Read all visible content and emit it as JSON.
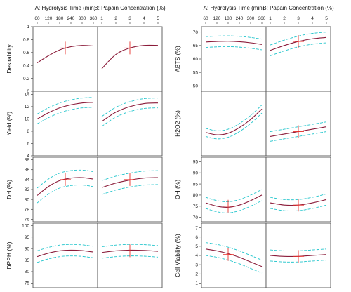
{
  "figure": {
    "left_group": {
      "headers": [
        "A: Hydrolysis Time (min)",
        "B: Papain Concentration (%)"
      ],
      "x_ticks": {
        "A": [
          "60",
          "120",
          "180",
          "240",
          "300",
          "360"
        ],
        "B": [
          "1",
          "2",
          "3",
          "4",
          "5"
        ]
      }
    },
    "right_group": {
      "headers": [
        "A: Hydrolysis Time (min)",
        "B: Papain Concentration (%)"
      ],
      "x_ticks": {
        "A": [
          "60",
          "120",
          "180",
          "240",
          "300",
          "360"
        ],
        "B": [
          "1",
          "2",
          "3",
          "4",
          "5"
        ]
      }
    }
  },
  "colors": {
    "fit": "#8b1c3a",
    "ci": "#22c5cc",
    "marker": "#e8302b",
    "frame": "#555555"
  },
  "chart_data": [
    {
      "type": "line",
      "group": "left",
      "row": 0,
      "ylabel": "Desirability",
      "yticks": [
        "1",
        "0.8",
        "0.6",
        "0.4",
        "0.2",
        "0"
      ],
      "ylim": [
        0,
        1
      ],
      "panels": [
        {
          "factor": "A",
          "xlim": [
            60,
            360
          ],
          "x": [
            60,
            120,
            180,
            240,
            300,
            360
          ],
          "fit": [
            0.44,
            0.55,
            0.64,
            0.69,
            0.71,
            0.7
          ],
          "ci_half": 0,
          "marker": [
            210,
            0.67
          ]
        },
        {
          "factor": "B",
          "xlim": [
            1,
            5
          ],
          "x": [
            1,
            2,
            3,
            4,
            5
          ],
          "fit": [
            0.35,
            0.57,
            0.67,
            0.71,
            0.71
          ],
          "ci_half": 0,
          "marker": [
            3,
            0.67
          ]
        }
      ]
    },
    {
      "type": "line",
      "group": "left",
      "row": 1,
      "ylabel": "Yield (%)",
      "yticks": [
        "14",
        "12",
        "10",
        "8",
        "6",
        "4"
      ],
      "ylim": [
        4,
        14.5
      ],
      "panels": [
        {
          "factor": "A",
          "xlim": [
            60,
            360
          ],
          "x": [
            60,
            120,
            180,
            240,
            300,
            360
          ],
          "fit": [
            10.0,
            11.0,
            11.8,
            12.3,
            12.6,
            12.7
          ],
          "ci_half": 0.8
        },
        {
          "factor": "B",
          "xlim": [
            1,
            5
          ],
          "x": [
            1,
            2,
            3,
            4,
            5
          ],
          "fit": [
            9.6,
            11.1,
            12.0,
            12.5,
            12.6
          ],
          "ci_half": 0.8
        }
      ]
    },
    {
      "type": "line",
      "group": "left",
      "row": 2,
      "ylabel": "DH (%)",
      "yticks": [
        "88",
        "86",
        "84",
        "82",
        "80",
        "78",
        "76"
      ],
      "ylim": [
        75.5,
        88.5
      ],
      "panels": [
        {
          "factor": "A",
          "xlim": [
            60,
            360
          ],
          "x": [
            60,
            120,
            180,
            240,
            300,
            360
          ],
          "fit": [
            80.8,
            82.6,
            83.8,
            84.3,
            84.4,
            84.1
          ],
          "ci_half": 1.5,
          "marker": [
            210,
            84.0
          ]
        },
        {
          "factor": "B",
          "xlim": [
            1,
            5
          ],
          "x": [
            1,
            2,
            3,
            4,
            5
          ],
          "fit": [
            82.4,
            83.3,
            83.9,
            84.3,
            84.4
          ],
          "ci_half": 1.4,
          "marker": [
            3,
            84.0
          ]
        }
      ]
    },
    {
      "type": "line",
      "group": "left",
      "row": 3,
      "ylabel": "DPPH (%)",
      "yticks": [
        "100",
        "95",
        "90",
        "85",
        "80",
        "75"
      ],
      "ylim": [
        73,
        101
      ],
      "panels": [
        {
          "factor": "A",
          "xlim": [
            60,
            360
          ],
          "x": [
            60,
            120,
            180,
            240,
            300,
            360
          ],
          "fit": [
            86.5,
            88.0,
            89.0,
            89.3,
            89.1,
            88.5
          ],
          "ci_half": 2.5
        },
        {
          "factor": "B",
          "xlim": [
            1,
            5
          ],
          "x": [
            1,
            2,
            3,
            4,
            5
          ],
          "fit": [
            88.3,
            89.0,
            89.3,
            89.2,
            88.8
          ],
          "ci_half": 2.5,
          "marker": [
            3,
            89.0
          ]
        }
      ]
    },
    {
      "type": "line",
      "group": "right",
      "row": 0,
      "ylabel": "ABTS (%)",
      "yticks": [
        "70",
        "65",
        "60",
        "55",
        "50"
      ],
      "ylim": [
        48,
        72
      ],
      "panels": [
        {
          "factor": "A",
          "xlim": [
            60,
            360
          ],
          "x": [
            60,
            120,
            180,
            240,
            300,
            360
          ],
          "fit": [
            66.3,
            66.5,
            66.6,
            66.4,
            66.0,
            65.4
          ],
          "ci_half": 2.0
        },
        {
          "factor": "B",
          "xlim": [
            1,
            5
          ],
          "x": [
            1,
            2,
            3,
            4,
            5
          ],
          "fit": [
            63.2,
            65.0,
            66.5,
            67.5,
            68.0
          ],
          "ci_half": 2.0,
          "marker": [
            3,
            66.5
          ]
        }
      ]
    },
    {
      "type": "line",
      "group": "right",
      "row": 1,
      "ylabel": "H2O2 (%)",
      "yticks": [],
      "ylim": [
        10,
        50
      ],
      "panels": [
        {
          "factor": "A",
          "xlim": [
            60,
            360
          ],
          "x": [
            60,
            120,
            180,
            240,
            300,
            360
          ],
          "fit": [
            24.5,
            23.0,
            24.0,
            27.5,
            32.5,
            39.0
          ],
          "ci_half": 2.5
        },
        {
          "factor": "B",
          "xlim": [
            1,
            5
          ],
          "x": [
            1,
            2,
            3,
            4,
            5
          ],
          "fit": [
            22.0,
            23.5,
            25.0,
            26.5,
            28.0
          ],
          "ci_half": 3.0,
          "marker": [
            3,
            25.0
          ]
        }
      ]
    },
    {
      "type": "line",
      "group": "right",
      "row": 2,
      "ylabel": "OH (%)",
      "yticks": [
        "95",
        "90",
        "85",
        "80",
        "75",
        "70"
      ],
      "ylim": [
        68,
        97
      ],
      "panels": [
        {
          "factor": "A",
          "xlim": [
            60,
            360
          ],
          "x": [
            60,
            120,
            180,
            240,
            300,
            360
          ],
          "fit": [
            76.5,
            75.0,
            74.5,
            75.5,
            77.5,
            80.0
          ],
          "ci_half": 2.5,
          "marker": [
            180,
            75.0
          ]
        },
        {
          "factor": "B",
          "xlim": [
            1,
            5
          ],
          "x": [
            1,
            2,
            3,
            4,
            5
          ],
          "fit": [
            76.5,
            75.5,
            75.5,
            76.5,
            78.0
          ],
          "ci_half": 2.5,
          "marker": [
            3,
            75.5
          ]
        }
      ]
    },
    {
      "type": "line",
      "group": "right",
      "row": 3,
      "ylabel": "Cell Viability (%)",
      "yticks": [
        "7",
        "6",
        "5",
        "4",
        "3",
        "2",
        "1"
      ],
      "ylim": [
        0.5,
        7.5
      ],
      "panels": [
        {
          "factor": "A",
          "xlim": [
            60,
            360
          ],
          "x": [
            60,
            120,
            180,
            240,
            300,
            360
          ],
          "fit": [
            4.7,
            4.5,
            4.2,
            3.8,
            3.3,
            2.8
          ],
          "ci_half": 0.7,
          "marker": [
            180,
            4.1
          ]
        },
        {
          "factor": "B",
          "xlim": [
            1,
            5
          ],
          "x": [
            1,
            2,
            3,
            4,
            5
          ],
          "fit": [
            4.0,
            3.9,
            3.9,
            4.0,
            4.1
          ],
          "ci_half": 0.6,
          "marker": [
            3,
            3.9
          ]
        }
      ]
    }
  ]
}
